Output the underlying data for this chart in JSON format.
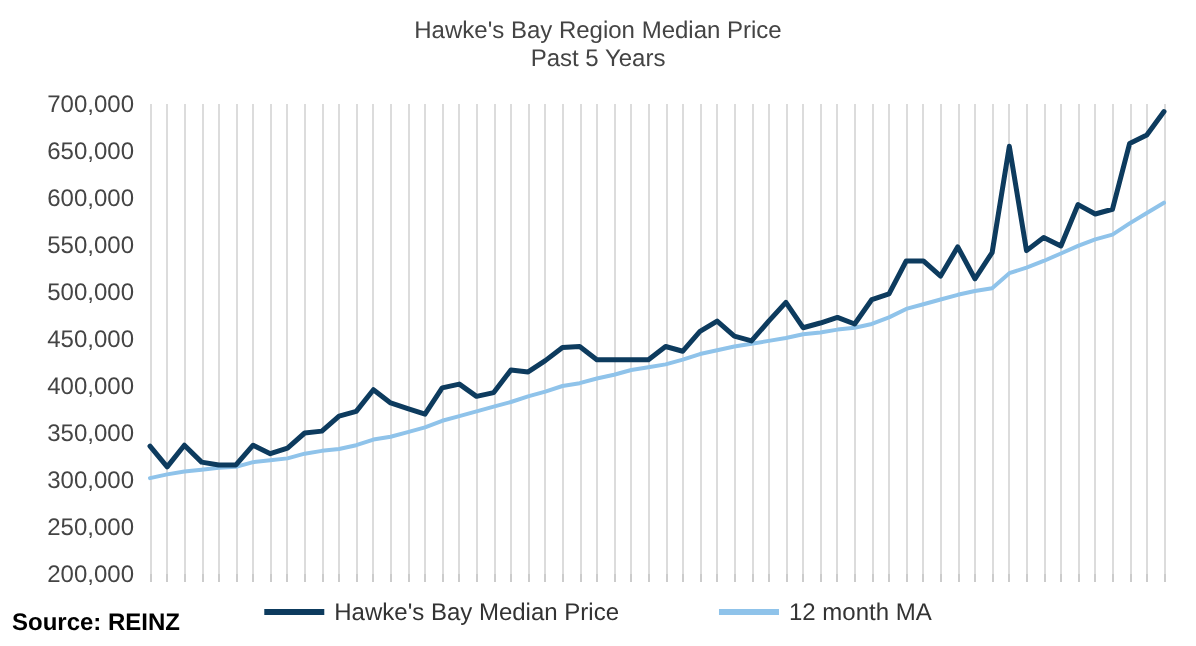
{
  "chart_data": {
    "type": "line",
    "title": "Hawke's Bay Region Median Price",
    "subtitle": "Past 5 Years",
    "annotations": [
      "Source: REINZ"
    ],
    "categories": [
      null,
      null,
      null,
      null,
      null,
      null,
      null,
      null,
      null,
      null,
      null,
      null,
      null,
      null,
      null,
      null,
      null,
      null,
      null,
      null,
      null,
      null,
      null,
      null,
      null,
      null,
      null,
      null,
      null,
      null,
      null,
      null,
      null,
      null,
      null,
      null,
      null,
      null,
      null,
      null,
      null,
      null,
      null,
      null,
      null,
      null,
      null,
      null,
      null,
      null,
      null,
      null,
      null,
      null,
      null,
      null,
      null,
      null,
      null,
      null
    ],
    "series": [
      {
        "name": "Hawke's Bay Median Price",
        "color": "#0d3b5e",
        "values": [
          336000,
          314000,
          337000,
          319000,
          316000,
          316000,
          337000,
          328000,
          334000,
          350000,
          352000,
          368000,
          373000,
          396000,
          382000,
          376000,
          370000,
          398000,
          402000,
          389000,
          393000,
          417000,
          415000,
          427000,
          441000,
          442000,
          428000,
          428000,
          428000,
          428000,
          442000,
          437000,
          458000,
          469000,
          453000,
          448000,
          469000,
          489000,
          462000,
          467000,
          473000,
          466000,
          492000,
          498000,
          533000,
          533000,
          517000,
          548000,
          514000,
          542000,
          655000,
          544000,
          558000,
          549000,
          593000,
          583000,
          588000,
          658000,
          667000,
          692000
        ]
      },
      {
        "name": "12 month MA",
        "color": "#8fc3ea",
        "values": [
          302000,
          306000,
          309000,
          311000,
          313000,
          314000,
          319000,
          321000,
          323000,
          328000,
          331000,
          333000,
          337000,
          343000,
          346000,
          351000,
          356000,
          363000,
          368000,
          373000,
          378000,
          383000,
          389000,
          394000,
          400000,
          403000,
          408000,
          412000,
          417000,
          420000,
          423000,
          428000,
          434000,
          438000,
          442000,
          445000,
          448000,
          451000,
          455000,
          457000,
          460000,
          462000,
          466000,
          473000,
          482000,
          487000,
          492000,
          497000,
          501000,
          504000,
          520000,
          526000,
          533000,
          541000,
          549000,
          556000,
          561000,
          573000,
          584000,
          595000
        ]
      }
    ],
    "ylim": [
      200000,
      700000
    ],
    "yticks": [
      {
        "value": 200000,
        "label": "200,000"
      },
      {
        "value": 250000,
        "label": "250,000"
      },
      {
        "value": 300000,
        "label": "300,000"
      },
      {
        "value": 350000,
        "label": "350,000"
      },
      {
        "value": 400000,
        "label": "400,000"
      },
      {
        "value": 450000,
        "label": "450,000"
      },
      {
        "value": 500000,
        "label": "500,000"
      },
      {
        "value": 550000,
        "label": "550,000"
      },
      {
        "value": 600000,
        "label": "600,000"
      },
      {
        "value": 650000,
        "label": "650,000"
      },
      {
        "value": 700000,
        "label": "700,000"
      }
    ],
    "grid": "x",
    "legend": "bottom",
    "marker": "none",
    "line_style": "solid"
  }
}
